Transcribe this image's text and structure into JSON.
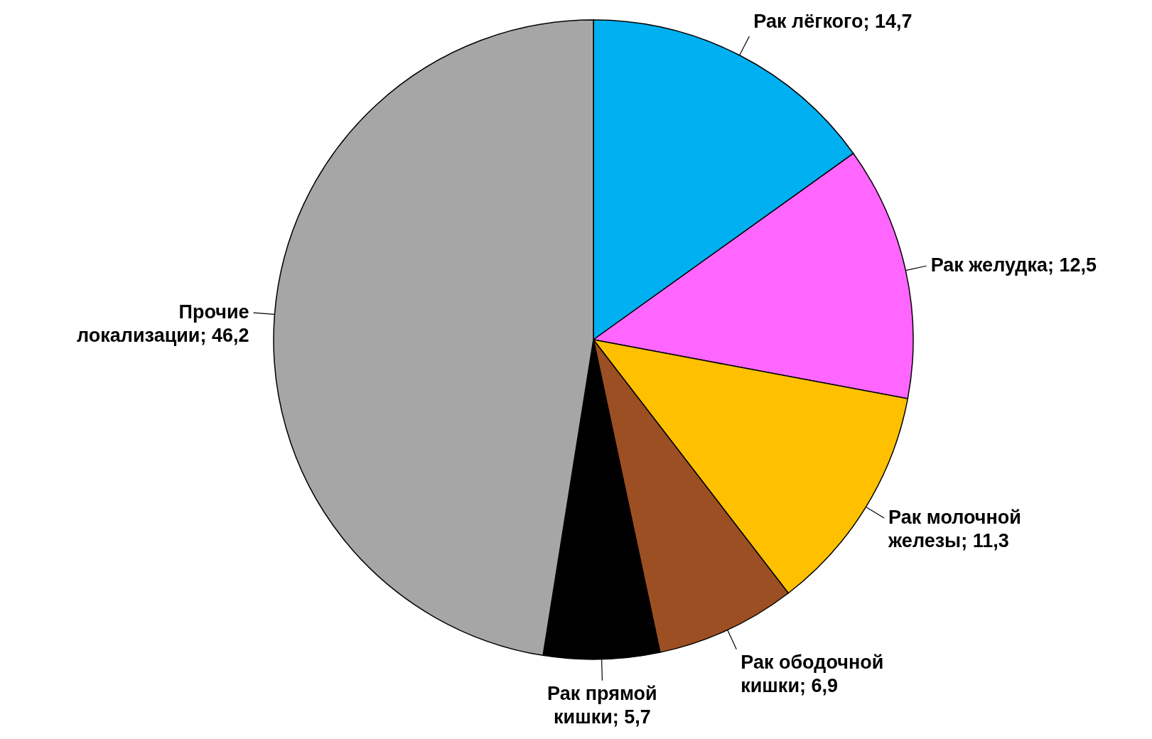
{
  "chart_data": {
    "type": "pie",
    "categories": [
      "Рак лёгкого",
      "Рак желудка",
      "Рак молочной железы",
      "Рак ободочной кишки",
      "Рак прямой кишки",
      "Прочие локализации"
    ],
    "values": [
      14.7,
      12.5,
      11.3,
      6.9,
      5.7,
      46.2
    ],
    "value_labels": [
      "14,7",
      "12,5",
      "11,3",
      "6,9",
      "5,7",
      "46,2"
    ],
    "colors": [
      "#00b0f0",
      "#ff66ff",
      "#ffc000",
      "#9c4f22",
      "#000000",
      "#a6a6a6"
    ]
  }
}
